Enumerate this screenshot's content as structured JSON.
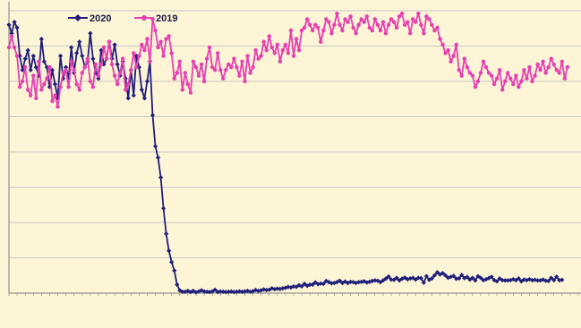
{
  "chart_data": {
    "type": "line",
    "ylim": [
      0,
      100
    ],
    "grid": true,
    "legend_position": "top-left",
    "colors": {
      "background": "#fdf5d6",
      "grid": "#c8c8c8",
      "axis": "#808080"
    },
    "series": [
      {
        "name": "2020",
        "color": "#1f1f7a",
        "marker": "diamond",
        "values": [
          95,
          92,
          96,
          94,
          84,
          79,
          83,
          86,
          79,
          84,
          80,
          77,
          90,
          82,
          80,
          73,
          79,
          74,
          69,
          84,
          76,
          80,
          76,
          87,
          78,
          85,
          89,
          84,
          80,
          82,
          92,
          83,
          78,
          76,
          86,
          81,
          83,
          89,
          83,
          88,
          81,
          77,
          82,
          76,
          69,
          79,
          70,
          84,
          80,
          72,
          69,
          75,
          82,
          63,
          52,
          48,
          41,
          30,
          21,
          15,
          11,
          8,
          3,
          1,
          0.5,
          0.5,
          0.8,
          0.4,
          0.8,
          0.3,
          0.6,
          1,
          0.6,
          0.5,
          0.4,
          0.6,
          1.2,
          0.4,
          0.6,
          0.5,
          0.4,
          0.5,
          0.6,
          0.4,
          0.5,
          0.6,
          0.5,
          0.6,
          0.8,
          0.5,
          0.7,
          1.1,
          0.8,
          1,
          1.3,
          1.1,
          1.2,
          1.7,
          1.4,
          1.6,
          1.5,
          1.7,
          1.9,
          2.2,
          2,
          2.4,
          2.2,
          2.8,
          2.4,
          3.3,
          2.6,
          3,
          3,
          3.8,
          3.2,
          3.4,
          3.3,
          4.3,
          3.9,
          3.5,
          3.6,
          3.9,
          4.4,
          3.6,
          4.1,
          3.6,
          4,
          3.9,
          3.6,
          3.9,
          4,
          4.2,
          3.8,
          4,
          4.3,
          4.5,
          4.4,
          3.9,
          4.5,
          5.1,
          5.9,
          4.8,
          4.7,
          5.4,
          4.5,
          5.1,
          5.5,
          4.9,
          5.2,
          5.4,
          4.8,
          5.4,
          5.3,
          3.7,
          6,
          4.7,
          5.2,
          6.3,
          7.4,
          6.6,
          7.1,
          6.3,
          5.4,
          5.8,
          6.1,
          5.1,
          5.2,
          6.4,
          5.3,
          5.7,
          4.8,
          5.4,
          4.5,
          6,
          5.4,
          4.6,
          4.9,
          5.3,
          5.8,
          4.6,
          4.2,
          5.2,
          4.6,
          4.5,
          4.5,
          4.6,
          4.9,
          4.6,
          5.2,
          4.2,
          4.8,
          4.6,
          4.9,
          4.6,
          4.7,
          4.5,
          4.5,
          4.8,
          4.4,
          4.3,
          5.4,
          4.6,
          5.8,
          4.6,
          4.7
        ]
      },
      {
        "name": "2019",
        "color": "#e63fb0",
        "marker": "circle",
        "values": [
          87,
          91,
          87,
          84,
          73,
          75,
          80,
          72,
          70,
          77,
          69,
          82,
          72,
          74,
          76,
          80,
          68,
          70,
          66,
          73,
          78,
          79,
          73,
          82,
          79,
          74,
          72,
          78,
          80,
          83,
          75,
          73,
          81,
          77,
          81,
          87,
          83,
          89,
          81,
          77,
          74,
          78,
          83,
          72,
          74,
          79,
          85,
          80,
          84,
          88,
          86,
          90,
          82,
          97,
          93,
          87,
          89,
          84,
          90,
          91,
          85,
          76,
          78,
          82,
          72,
          78,
          74,
          71,
          82,
          80,
          77,
          81,
          75,
          83,
          87,
          80,
          79,
          85,
          79,
          76,
          79,
          81,
          80,
          83,
          80,
          77,
          82,
          75,
          84,
          78,
          80,
          86,
          83,
          84,
          89,
          86,
          91,
          87,
          85,
          88,
          82,
          86,
          88,
          85,
          93,
          84,
          90,
          86,
          93,
          94,
          97,
          95,
          93,
          95,
          94,
          89,
          93,
          97,
          96,
          92,
          95,
          99,
          95,
          93,
          97,
          96,
          98,
          94,
          92,
          95,
          97,
          96,
          98,
          94,
          93,
          97,
          95,
          93,
          96,
          92,
          95,
          97,
          96,
          94,
          98,
          99,
          95,
          96,
          92,
          97,
          96,
          99,
          95,
          92,
          98,
          97,
          95,
          93,
          94,
          90,
          88,
          85,
          86,
          82,
          84,
          88,
          79,
          77,
          83,
          80,
          78,
          77,
          73,
          75,
          78,
          82,
          80,
          78,
          77,
          74,
          76,
          79,
          72,
          75,
          78,
          76,
          74,
          77,
          73,
          75,
          79,
          76,
          80,
          75,
          77,
          81,
          79,
          82,
          78,
          80,
          83,
          81,
          79,
          78,
          82,
          76,
          80
        ]
      }
    ]
  },
  "legend": {
    "items": [
      {
        "label": "2020"
      },
      {
        "label": "2019"
      }
    ]
  }
}
